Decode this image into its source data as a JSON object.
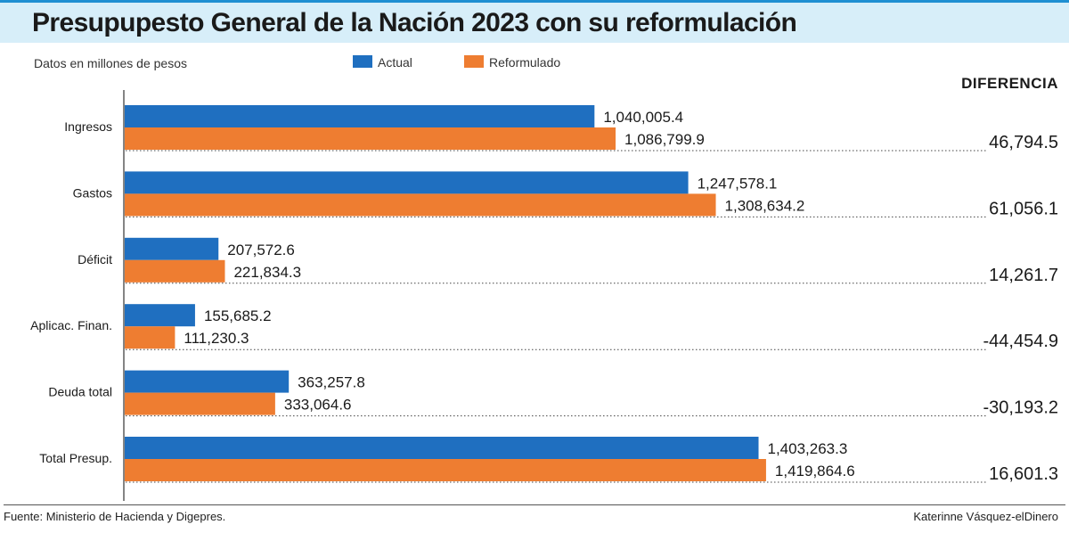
{
  "title": "Presupupesto General de la Nación 2023 con su reformulación",
  "units_note": "Datos en millones de pesos",
  "legend": [
    {
      "label": "Actual",
      "color": "#1f6fc0"
    },
    {
      "label": "Reformulado",
      "color": "#ee7d31"
    }
  ],
  "difference_header": "DIFERENCIA",
  "source": "Fuente: Ministerio de Hacienda y Digepres.",
  "credit": "Katerinne Vásquez-elDinero",
  "chart_data": {
    "type": "bar",
    "orientation": "horizontal",
    "categories": [
      "Ingresos",
      "Gastos",
      "Déficit",
      "Aplicac. Finan.",
      "Deuda total",
      "Total Presup."
    ],
    "series": [
      {
        "name": "Actual",
        "color": "#1f6fc0",
        "values": [
          1040005.4,
          1247578.1,
          207572.6,
          155685.2,
          363257.8,
          1403263.3
        ],
        "labels": [
          "1,040,005.4",
          "1,247,578.1",
          "207,572.6",
          "155,685.2",
          "363,257.8",
          "1,403,263.3"
        ]
      },
      {
        "name": "Reformulado",
        "color": "#ee7d31",
        "values": [
          1086799.9,
          1308634.2,
          221834.3,
          111230.3,
          333064.6,
          1419864.6
        ],
        "labels": [
          "1,086,799.9",
          "1,308,634.2",
          "221,834.3",
          "111,230.3",
          "333,064.6",
          "1,419,864.6"
        ]
      }
    ],
    "difference": {
      "values": [
        46794.5,
        61056.1,
        14261.7,
        -44454.9,
        -30193.2,
        16601.3
      ],
      "labels": [
        "46,794.5",
        "61,056.1",
        "14,261.7",
        "-44,454.9",
        "-30,193.2",
        "16,601.3"
      ]
    },
    "xlim": [
      0,
      1420000
    ],
    "grid": false,
    "legend_position": "top"
  }
}
